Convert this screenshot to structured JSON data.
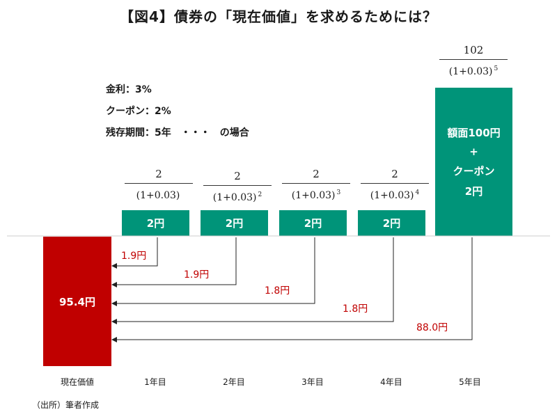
{
  "title": "【図4】債券の「現在価値」を求めるためには？",
  "conditions": [
    "金利：3%",
    "クーポン：2%",
    "残存期間：5年　・・・　の場合"
  ],
  "fractions": [
    {
      "num": "2",
      "den": "(1+0.03)",
      "exp": ""
    },
    {
      "num": "2",
      "den": "(1+0.03)",
      "exp": "2"
    },
    {
      "num": "2",
      "den": "(1+0.03)",
      "exp": "3"
    },
    {
      "num": "2",
      "den": "(1+0.03)",
      "exp": "4"
    },
    {
      "num": "102",
      "den": "(1+0.03)",
      "exp": "5"
    }
  ],
  "coupons": [
    "2円",
    "2円",
    "2円",
    "2円"
  ],
  "final_bar": {
    "line1": "額面100円",
    "line2": "+",
    "line3": "クーポン",
    "line4": "2円"
  },
  "present_value": "95.4円",
  "pv_values": [
    "1.9円",
    "1.9円",
    "1.8円",
    "1.8円",
    "88.0円"
  ],
  "x_labels": [
    "現在価値",
    "1年目",
    "2年目",
    "3年目",
    "4年目",
    "5年目"
  ],
  "source": "（出所）筆者作成",
  "colors": {
    "green": "#009479",
    "red": "#c00000"
  }
}
